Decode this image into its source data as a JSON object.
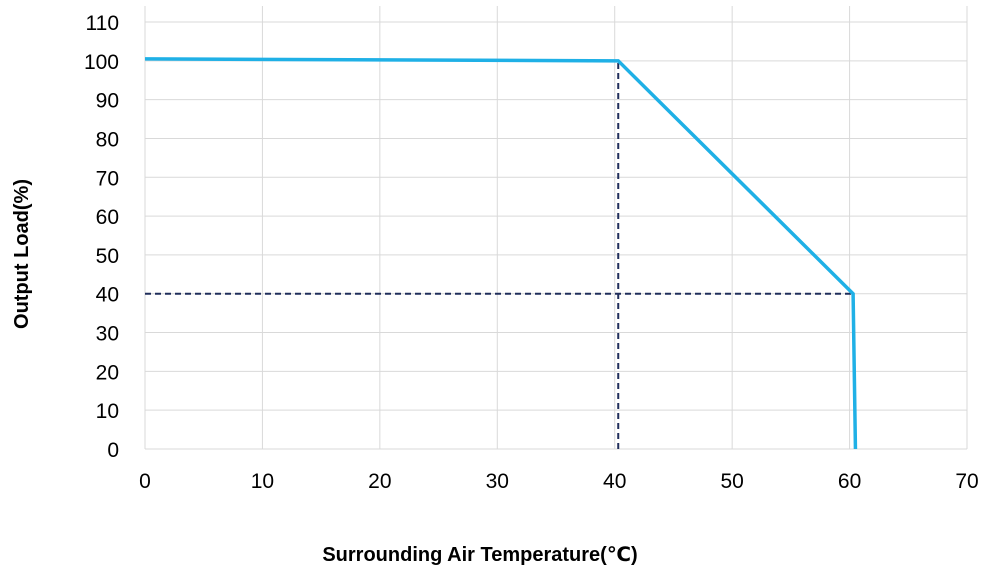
{
  "chart_data": {
    "type": "line",
    "title": "",
    "xlabel": "Surrounding Air Temperature(℃)",
    "ylabel": "Output Load(%)",
    "xlim": [
      0,
      70
    ],
    "ylim": [
      0,
      110
    ],
    "x_ticks": [
      "0",
      "10",
      "20",
      "30",
      "40",
      "50",
      "60",
      "70"
    ],
    "y_ticks": [
      "0",
      "10",
      "20",
      "30",
      "40",
      "50",
      "60",
      "70",
      "80",
      "90",
      "100",
      "110"
    ],
    "grid": true,
    "series": [
      {
        "x": [
          0,
          40.3,
          60.3,
          60.5
        ],
        "y": [
          100.5,
          100,
          40,
          0
        ],
        "color": "#1fb0e6"
      }
    ],
    "reference_lines": [
      {
        "orientation": "vertical",
        "x": 40.3,
        "y_from": 0,
        "y_to": 100,
        "style": "dashed",
        "color": "#1f2d5a"
      },
      {
        "orientation": "horizontal",
        "y": 40,
        "x_from": 0,
        "x_to": 60.3,
        "style": "dashed",
        "color": "#1f2d5a"
      }
    ],
    "grid_color": "#d9d9d9"
  }
}
